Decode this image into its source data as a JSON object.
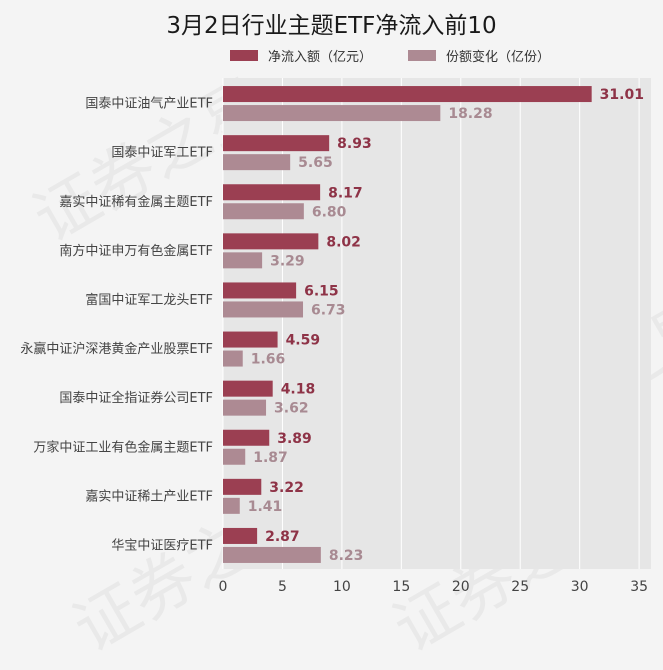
{
  "chart_data": {
    "type": "bar",
    "orientation": "horizontal",
    "title": "3月2日行业主题ETF净流入前10",
    "categories": [
      "国泰中证油气产业ETF",
      "国泰中证军工ETF",
      "嘉实中证稀有金属主题ETF",
      "南方中证申万有色金属ETF",
      "富国中证军工龙头ETF",
      "永赢中证沪深港黄金产业股票ETF",
      "国泰中证全指证券公司ETF",
      "万家中证工业有色金属主题ETF",
      "嘉实中证稀土产业ETF",
      "华宝中证医疗ETF"
    ],
    "series": [
      {
        "name": "净流入额（亿元）",
        "color": "#9b3f52",
        "values": [
          31.01,
          8.93,
          8.17,
          8.02,
          6.15,
          4.59,
          4.18,
          3.89,
          3.22,
          2.87
        ]
      },
      {
        "name": "份额变化（亿份）",
        "color": "#ad8a93",
        "values": [
          18.28,
          5.65,
          6.8,
          3.29,
          6.73,
          1.66,
          3.62,
          1.87,
          1.41,
          8.23
        ]
      }
    ],
    "value_labels": [
      [
        "31.01",
        "8.93",
        "8.17",
        "8.02",
        "6.15",
        "4.59",
        "4.18",
        "3.89",
        "3.22",
        "2.87"
      ],
      [
        "18.28",
        "5.65",
        "6.80",
        "3.29",
        "6.73",
        "1.66",
        "3.62",
        "1.87",
        "1.41",
        "8.23"
      ]
    ],
    "xlim": [
      0,
      36
    ],
    "xticks": [
      0,
      5,
      10,
      15,
      20,
      25,
      30,
      35
    ],
    "grid": true,
    "legend_position": "top"
  },
  "watermark": "证券之星"
}
